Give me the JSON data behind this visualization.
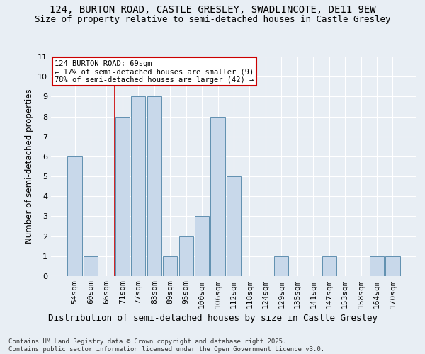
{
  "title": "124, BURTON ROAD, CASTLE GRESLEY, SWADLINCOTE, DE11 9EW",
  "subtitle": "Size of property relative to semi-detached houses in Castle Gresley",
  "xlabel": "Distribution of semi-detached houses by size in Castle Gresley",
  "ylabel": "Number of semi-detached properties",
  "categories": [
    "54sqm",
    "60sqm",
    "66sqm",
    "71sqm",
    "77sqm",
    "83sqm",
    "89sqm",
    "95sqm",
    "100sqm",
    "106sqm",
    "112sqm",
    "118sqm",
    "124sqm",
    "129sqm",
    "135sqm",
    "141sqm",
    "147sqm",
    "153sqm",
    "158sqm",
    "164sqm",
    "170sqm"
  ],
  "values": [
    6,
    1,
    0,
    8,
    9,
    9,
    1,
    2,
    3,
    8,
    5,
    0,
    0,
    1,
    0,
    0,
    1,
    0,
    0,
    1,
    1
  ],
  "bar_color": "#c8d8ea",
  "bar_edge_color": "#6090b0",
  "vline_color": "#cc0000",
  "vline_x": 2.5,
  "annotation_text": "124 BURTON ROAD: 69sqm\n← 17% of semi-detached houses are smaller (9)\n78% of semi-detached houses are larger (42) →",
  "annotation_box_facecolor": "#ffffff",
  "annotation_box_edgecolor": "#cc0000",
  "ylim": [
    0,
    11
  ],
  "yticks": [
    0,
    1,
    2,
    3,
    4,
    5,
    6,
    7,
    8,
    9,
    10,
    11
  ],
  "background_color": "#e8eef4",
  "grid_color": "#ffffff",
  "footer": "Contains HM Land Registry data © Crown copyright and database right 2025.\nContains public sector information licensed under the Open Government Licence v3.0.",
  "title_fontsize": 10,
  "subtitle_fontsize": 9,
  "xlabel_fontsize": 9,
  "ylabel_fontsize": 8.5,
  "tick_fontsize": 8,
  "annot_fontsize": 7.5,
  "footer_fontsize": 6.5
}
